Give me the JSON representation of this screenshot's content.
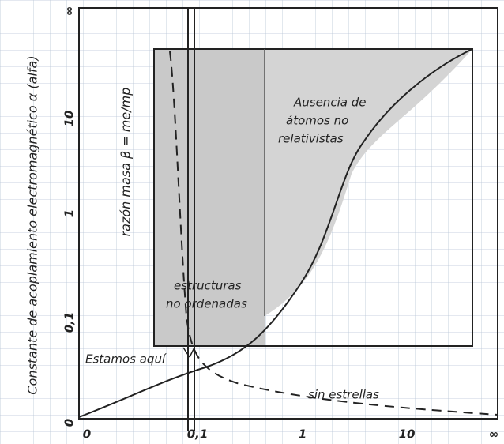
{
  "axes": {
    "y_label": "Constante de acoplamiento electromagnético α (alfa)",
    "x_label": "razón masa β = me/mp",
    "x_ticks": [
      "0",
      "0,1",
      "1",
      "10",
      "∞"
    ],
    "y_ticks": [
      "∞",
      "10",
      "1",
      "0,1",
      "0"
    ]
  },
  "annotations": {
    "no_atoms": [
      "Ausencia de",
      "átomos no",
      "relativistas"
    ],
    "disordered": [
      "estructuras",
      "no ordenadas"
    ],
    "here": "Estamos aquí",
    "no_stars": "sin estrellas"
  }
}
